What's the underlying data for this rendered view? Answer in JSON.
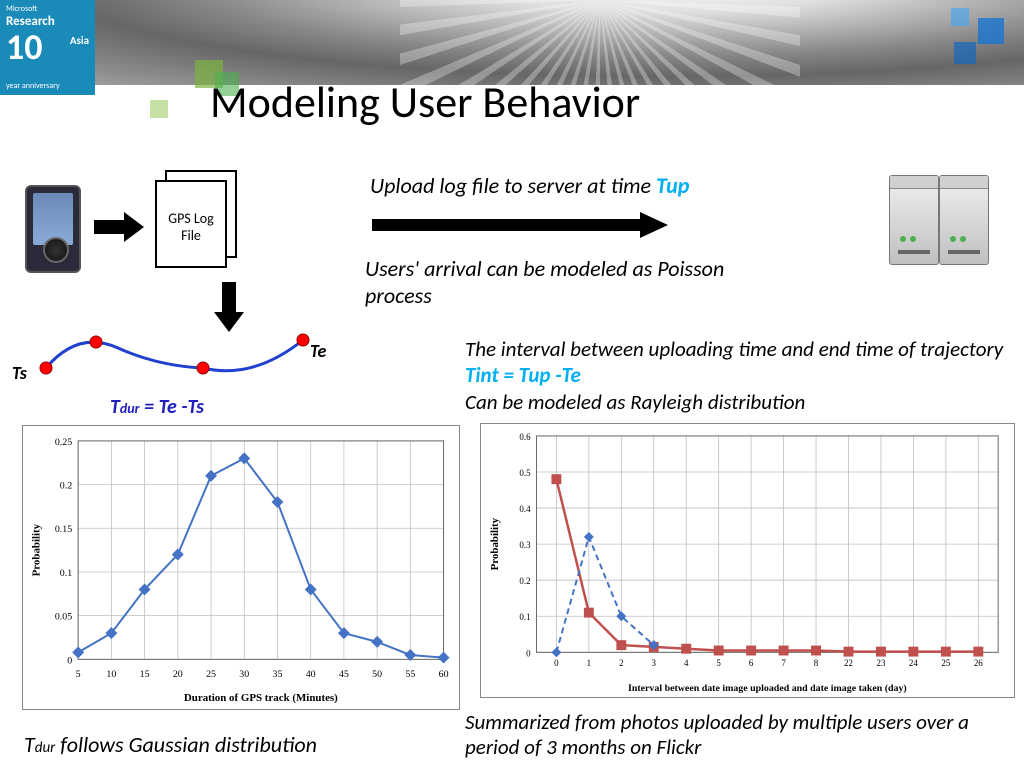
{
  "title": "Modeling User Behavior",
  "logo": {
    "ms": "Microsoft",
    "research": "Research",
    "ten": "10",
    "asia": "Asia",
    "anniv": "year anniversary"
  },
  "doc_label": "GPS Log File",
  "text": {
    "upload_prefix": "Upload log file to server at time ",
    "upload_tup": "Tup",
    "poisson": "Users' arrival can be modeled as Poisson process",
    "interval_line1": "The interval between uploading time and end time of trajectory  ",
    "interval_tint": "Tint = Tup -Te",
    "interval_line2": "Can be modeled as Rayleigh distribution",
    "summary": "Summarized from photos uploaded by multiple users over a period of 3 months on Flickr",
    "gauss_prefix": "T",
    "gauss_sub": "dur",
    "gauss_rest": "  follows Gaussian distribution",
    "tdur": "Tdur = Te -Ts",
    "ts": "Ts",
    "te": "Te"
  },
  "trajectory": {
    "line_color": "#2040d0",
    "point_color": "#ff0000",
    "line_width": 3,
    "point_radius": 6
  },
  "chart1": {
    "type": "line",
    "xlabel": "Duration of GPS track (Minutes)",
    "ylabel": "Probability",
    "x": [
      5,
      10,
      15,
      20,
      25,
      30,
      35,
      40,
      45,
      50,
      55,
      60
    ],
    "y": [
      0.008,
      0.03,
      0.08,
      0.12,
      0.21,
      0.23,
      0.18,
      0.08,
      0.03,
      0.02,
      0.005,
      0.002
    ],
    "ylim": [
      0,
      0.25
    ],
    "ytick_step": 0.05,
    "line_color": "#4472c4",
    "marker": "diamond",
    "marker_size": 6,
    "line_width": 2,
    "grid_color": "#bfbfbf",
    "label_fontsize": 11,
    "tick_fontsize": 10
  },
  "chart2": {
    "type": "line",
    "xlabel": "Interval between date image uploaded and date image taken (day)",
    "ylabel": "Probability",
    "x_labels": [
      "0",
      "1",
      "2",
      "3",
      "4",
      "5",
      "6",
      "7",
      "8",
      "22",
      "23",
      "24",
      "25",
      "26"
    ],
    "series": [
      {
        "y": [
          0.48,
          0.11,
          0.02,
          0.015,
          0.01,
          0.005,
          0.005,
          0.005,
          0.005,
          0.002,
          0.002,
          0.002,
          0.002,
          0.002
        ],
        "color": "#c0504d",
        "marker": "square",
        "line_width": 2.5
      },
      {
        "y": [
          0.0,
          0.32,
          0.1,
          0.02,
          null,
          null,
          null,
          null,
          null,
          null,
          null,
          null,
          null,
          null
        ],
        "color": "#4472c4",
        "dash": "6,4",
        "marker": "diamond",
        "line_width": 2
      }
    ],
    "ylim": [
      0,
      0.6
    ],
    "ytick_step": 0.1,
    "grid_color": "#bfbfbf",
    "label_fontsize": 10,
    "tick_fontsize": 9
  }
}
